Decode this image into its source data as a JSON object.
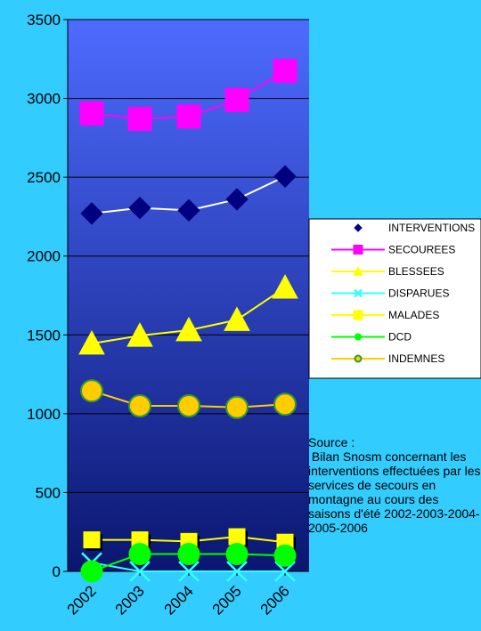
{
  "chart_data": {
    "type": "line",
    "title": "",
    "xlabel": "",
    "ylabel": "",
    "x": [
      "2002",
      "2003",
      "2004",
      "2005",
      "2006"
    ],
    "ylim": [
      0,
      3500
    ],
    "yticks": [
      "0",
      "500",
      "1000",
      "1500",
      "2000",
      "2500",
      "3000",
      "3500"
    ],
    "grid": "horizontal",
    "legend_position": "right",
    "series": [
      {
        "name": "INTERVENTIONS",
        "values": [
          2270,
          2305,
          2290,
          2360,
          2505
        ],
        "color": "#000080",
        "line": "#ffffff",
        "marker": "diamond"
      },
      {
        "name": "SECOUREES",
        "values": [
          2905,
          2870,
          2885,
          2990,
          3175
        ],
        "color": "#ff00ff",
        "line": "#ff00ff",
        "marker": "square"
      },
      {
        "name": "BLESSEES",
        "values": [
          1445,
          1495,
          1530,
          1595,
          1800
        ],
        "color": "#ffff00",
        "line": "#ffff00",
        "marker": "triangle"
      },
      {
        "name": "DISPARUES",
        "values": [
          55,
          0,
          0,
          0,
          0
        ],
        "color": "#33ffff",
        "line": "#33ffff",
        "marker": "x"
      },
      {
        "name": "MALADES",
        "values": [
          200,
          200,
          190,
          220,
          185
        ],
        "color": "#ffff00",
        "line": "#ffff00",
        "marker": "square"
      },
      {
        "name": "DCD",
        "values": [
          0,
          110,
          110,
          110,
          100
        ],
        "color": "#00ff00",
        "line": "#00ff00",
        "marker": "circle"
      },
      {
        "name": "INDEMNES",
        "values": [
          1145,
          1050,
          1050,
          1040,
          1060
        ],
        "color": "#ffcc00",
        "line": "#ffcc00",
        "marker": "circle",
        "edge": "#339933"
      }
    ]
  },
  "source_text": "Source :\n Bilan Snosm concernant les interventions effectuées par les services de secours en montagne au cours des saisons d'été 2002-2003-2004-2005-2006",
  "colors": {
    "background": "#33ccff",
    "plot_top": "#4d6bff",
    "plot_bottom": "#0a1670"
  }
}
